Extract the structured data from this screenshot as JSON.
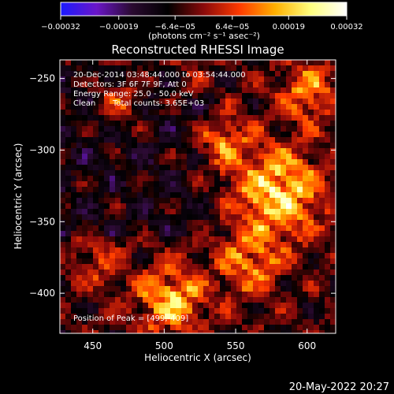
{
  "chart_data": {
    "type": "heatmap",
    "title": "Reconstructed RHESSI Image",
    "xlabel": "Heliocentric X (arcsec)",
    "ylabel": "Heliocentric Y (arcsec)",
    "xlim": [
      427,
      620
    ],
    "ylim": [
      -428,
      -237
    ],
    "xticks": [
      450,
      500,
      550,
      600
    ],
    "yticks": [
      -250,
      -300,
      -350,
      -400
    ],
    "xtick_labels": [
      "450",
      "500",
      "550",
      "600"
    ],
    "ytick_labels": [
      "−250",
      "−300",
      "−350",
      "−400"
    ],
    "colorbar": {
      "range": [
        -0.00032,
        0.00032
      ],
      "ticks": [
        -0.00032,
        -0.00019,
        -6.4e-05,
        6.4e-05,
        0.00019,
        0.00032
      ],
      "tick_labels": [
        "−0.00032",
        "−0.00019",
        "−6.4e−05",
        "6.4e−05",
        "0.00019",
        "0.00032"
      ],
      "units_label": "(photons cm⁻² s⁻¹ asec⁻²)",
      "stops": [
        "#1a1aff",
        "#6a16c8",
        "#2a0a30",
        "#000000",
        "#8a0a0a",
        "#ff3a00",
        "#ffb000",
        "#ffff80",
        "#ffffff"
      ]
    },
    "annotations": {
      "time_range": "20-Dec-2014 03:48:44.000 to 03:54:44.000",
      "detectors": "Detectors: 3F 6F 7F 9F, Att 0",
      "energy_range": "Energy Range: 25.0 - 50.0 keV",
      "method": "Clean",
      "total_counts": "Total counts: 3.65E+03",
      "peak": "Position of Peak = [499,-409]"
    },
    "peak_position": [
      499,
      -409
    ],
    "grid": false
  },
  "footer": {
    "timestamp": "20-May-2022 20:27"
  }
}
